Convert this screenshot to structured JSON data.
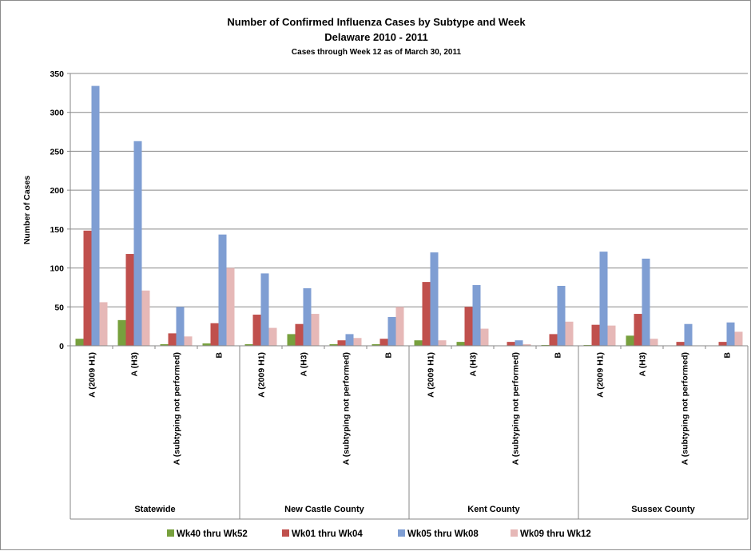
{
  "chart_data": {
    "type": "bar",
    "title": "Number of Confirmed Influenza Cases by Subtype and Week",
    "subtitle": "Delaware 2010 - 2011",
    "subtitle2": "Cases through Week 12 as of March 30, 2011",
    "ylabel": "Number of Cases",
    "ylim": [
      0,
      350
    ],
    "yticks": [
      0,
      50,
      100,
      150,
      200,
      250,
      300,
      350
    ],
    "grid": true,
    "legend_position": "bottom",
    "groups": [
      "Statewide",
      "New Castle County",
      "Kent County",
      "Sussex County"
    ],
    "subcategories": [
      "A (2009 H1)",
      "A (H3)",
      "A (subtyping not performed)",
      "B"
    ],
    "categories": [
      "A (2009 H1)",
      "A (H3)",
      "A (subtyping not performed)",
      "B",
      "A (2009 H1)",
      "A (H3)",
      "A (subtyping not performed)",
      "B",
      "A (2009 H1)",
      "A (H3)",
      "A (subtyping not performed)",
      "B",
      "A (2009 H1)",
      "A (H3)",
      "A (subtyping not performed)",
      "B"
    ],
    "series": [
      {
        "name": "Wk40 thru Wk52",
        "color": "#77a03d",
        "values": [
          9,
          33,
          2,
          3,
          2,
          15,
          2,
          2,
          7,
          5,
          0,
          1,
          1,
          13,
          0,
          0
        ]
      },
      {
        "name": "Wk01 thru Wk04",
        "color": "#c0504d",
        "values": [
          148,
          118,
          16,
          29,
          40,
          28,
          7,
          9,
          82,
          50,
          5,
          15,
          27,
          41,
          5,
          5
        ]
      },
      {
        "name": "Wk05 thru Wk08",
        "color": "#7f9ed3",
        "values": [
          334,
          263,
          50,
          143,
          93,
          74,
          15,
          37,
          120,
          78,
          7,
          77,
          121,
          112,
          28,
          30
        ]
      },
      {
        "name": "Wk09 thru Wk12",
        "color": "#e6b8b7",
        "values": [
          56,
          71,
          12,
          100,
          23,
          41,
          10,
          50,
          7,
          22,
          2,
          31,
          26,
          9,
          0,
          18
        ]
      }
    ]
  }
}
